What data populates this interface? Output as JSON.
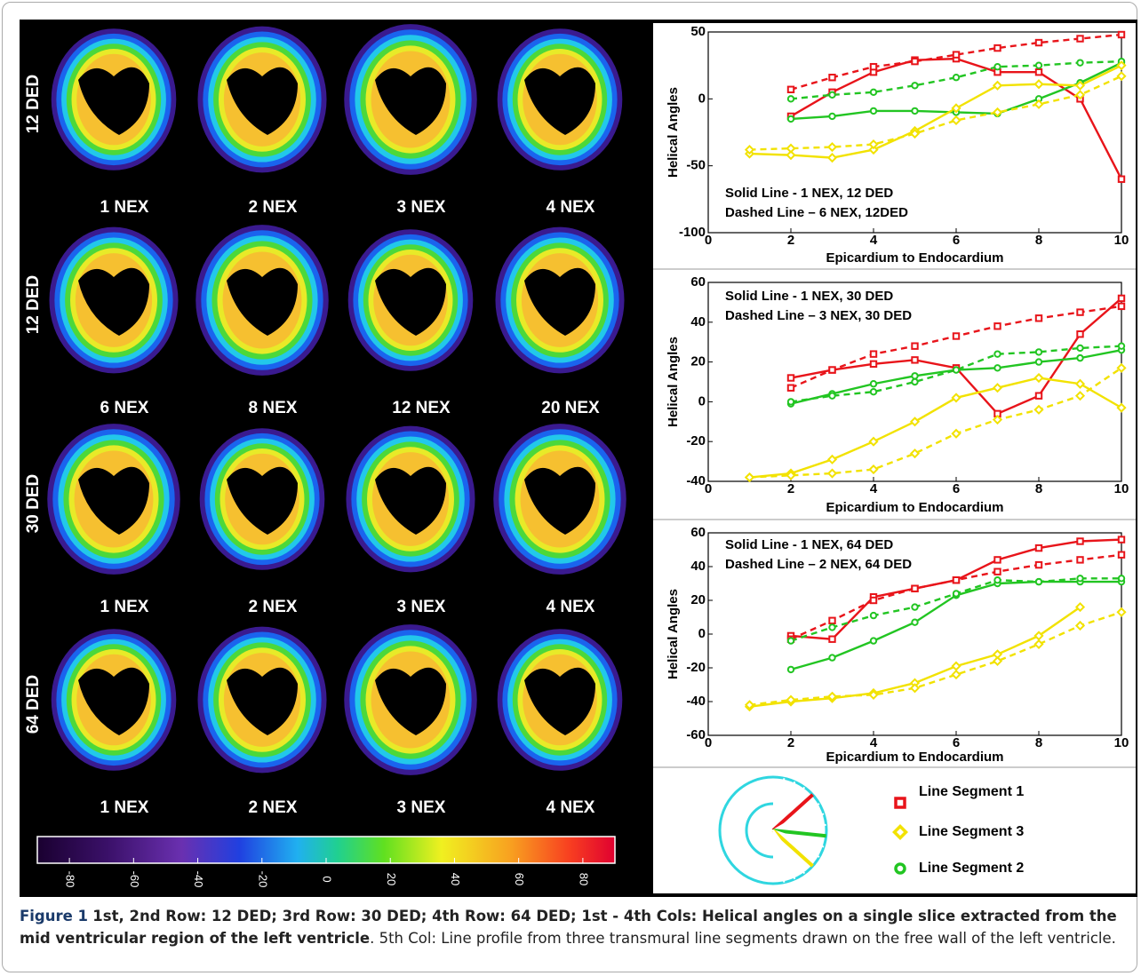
{
  "panels": {
    "rows": [
      {
        "label": "12 DED",
        "images": [
          "1 NEX",
          "2 NEX",
          "3 NEX",
          "4 NEX"
        ]
      },
      {
        "label": "12 DED",
        "images": [
          "6 NEX",
          "8 NEX",
          "12 NEX",
          "20 NEX"
        ]
      },
      {
        "label": "30 DED",
        "images": [
          "1 NEX",
          "2 NEX",
          "3 NEX",
          "4 NEX"
        ]
      },
      {
        "label": "64 DED",
        "images": [
          "1 NEX",
          "2 NEX",
          "3 NEX",
          "4 NEX"
        ]
      }
    ]
  },
  "colorbar": {
    "lim": [
      -90,
      90
    ],
    "ticks": [
      -80,
      -60,
      -40,
      -20,
      0,
      20,
      40,
      60,
      80
    ]
  },
  "chart_data": [
    {
      "type": "line",
      "y_label": "Helical Angles",
      "x_label": "Epicardium to Endocardium",
      "annotations": [
        "Solid Line - 1 NEX, 12 DED",
        "Dashed Line – 6 NEX, 12DED"
      ],
      "x": [
        1,
        2,
        3,
        4,
        5,
        6,
        7,
        8,
        9,
        10
      ],
      "xlim": [
        0,
        10
      ],
      "xticks": [
        0,
        2,
        4,
        6,
        8,
        10
      ],
      "ylim": [
        -100,
        50
      ],
      "yticks": [
        -100,
        -50,
        0,
        50
      ],
      "series": [
        {
          "color": "#e8141a",
          "style": "solid",
          "marker": "square",
          "values": [
            null,
            -13,
            5,
            20,
            29,
            30,
            20,
            20,
            0,
            -60
          ]
        },
        {
          "color": "#e8141a",
          "style": "dashed",
          "marker": "square",
          "values": [
            null,
            7,
            16,
            24,
            28,
            33,
            38,
            42,
            45,
            48
          ]
        },
        {
          "color": "#22c522",
          "style": "solid",
          "marker": "circle",
          "values": [
            null,
            -15,
            -13,
            -9,
            -9,
            -10,
            -11,
            0,
            12,
            27
          ]
        },
        {
          "color": "#22c522",
          "style": "dashed",
          "marker": "circle",
          "values": [
            null,
            0,
            3,
            5,
            10,
            16,
            24,
            25,
            27,
            28
          ]
        },
        {
          "color": "#f2e200",
          "style": "solid",
          "marker": "diamond",
          "values": [
            -41,
            -42,
            -44,
            -38,
            -24,
            -7,
            10,
            11,
            10,
            25
          ]
        },
        {
          "color": "#f2e200",
          "style": "dashed",
          "marker": "diamond",
          "values": [
            -38,
            -37,
            -36,
            -34,
            -26,
            -16,
            -10,
            -4,
            3,
            17
          ]
        }
      ]
    },
    {
      "type": "line",
      "y_label": "Helical Angles",
      "x_label": "Epicardium to Endocardium",
      "annotations": [
        "Solid Line - 1 NEX, 30 DED",
        "Dashed Line – 3 NEX, 30 DED"
      ],
      "x": [
        1,
        2,
        3,
        4,
        5,
        6,
        7,
        8,
        9,
        10
      ],
      "xlim": [
        0,
        10
      ],
      "xticks": [
        0,
        2,
        4,
        6,
        8,
        10
      ],
      "ylim": [
        -40,
        60
      ],
      "yticks": [
        -40,
        -20,
        0,
        20,
        40,
        60
      ],
      "series": [
        {
          "color": "#e8141a",
          "style": "solid",
          "marker": "square",
          "values": [
            null,
            12,
            16,
            19,
            21,
            17,
            -6,
            3,
            34,
            52
          ]
        },
        {
          "color": "#e8141a",
          "style": "dashed",
          "marker": "square",
          "values": [
            null,
            7,
            16,
            24,
            28,
            33,
            38,
            42,
            45,
            48
          ]
        },
        {
          "color": "#22c522",
          "style": "solid",
          "marker": "circle",
          "values": [
            null,
            -1,
            4,
            9,
            13,
            16,
            17,
            20,
            22,
            26
          ]
        },
        {
          "color": "#22c522",
          "style": "dashed",
          "marker": "circle",
          "values": [
            null,
            0,
            3,
            5,
            10,
            16,
            24,
            25,
            27,
            28
          ]
        },
        {
          "color": "#f2e200",
          "style": "solid",
          "marker": "diamond",
          "values": [
            -38,
            -36,
            -29,
            -20,
            -10,
            2,
            7,
            12,
            9,
            -3
          ]
        },
        {
          "color": "#f2e200",
          "style": "dashed",
          "marker": "diamond",
          "values": [
            -38,
            -37,
            -36,
            -34,
            -26,
            -16,
            -9,
            -4,
            3,
            17
          ]
        }
      ]
    },
    {
      "type": "line",
      "y_label": "Helical Angles",
      "x_label": "Epicardium to Endocardium",
      "annotations": [
        "Solid Line - 1 NEX, 64 DED",
        "Dashed Line – 2 NEX, 64 DED"
      ],
      "x": [
        1,
        2,
        3,
        4,
        5,
        6,
        7,
        8,
        9,
        10
      ],
      "xlim": [
        0,
        10
      ],
      "xticks": [
        0,
        2,
        4,
        6,
        8,
        10
      ],
      "ylim": [
        -60,
        60
      ],
      "yticks": [
        -60,
        -40,
        -20,
        0,
        20,
        40,
        60
      ],
      "series": [
        {
          "color": "#e8141a",
          "style": "solid",
          "marker": "square",
          "values": [
            null,
            -1,
            -3,
            22,
            27,
            32,
            44,
            51,
            55,
            56
          ]
        },
        {
          "color": "#e8141a",
          "style": "dashed",
          "marker": "square",
          "values": [
            null,
            -3,
            8,
            20,
            27,
            32,
            37,
            41,
            44,
            47
          ]
        },
        {
          "color": "#22c522",
          "style": "solid",
          "marker": "circle",
          "values": [
            null,
            -21,
            -14,
            -4,
            7,
            23,
            30,
            31,
            31,
            31
          ]
        },
        {
          "color": "#22c522",
          "style": "dashed",
          "marker": "circle",
          "values": [
            null,
            -4,
            4,
            11,
            16,
            24,
            32,
            31,
            33,
            33
          ]
        },
        {
          "color": "#f2e200",
          "style": "solid",
          "marker": "diamond",
          "values": [
            -43,
            -40,
            -38,
            -35,
            -29,
            -19,
            -12,
            -1,
            16,
            null
          ]
        },
        {
          "color": "#f2e200",
          "style": "dashed",
          "marker": "diamond",
          "values": [
            -42,
            -39,
            -37,
            -36,
            -32,
            -24,
            -16,
            -6,
            5,
            13
          ]
        }
      ]
    }
  ],
  "legend": [
    {
      "label": "Line Segment 1",
      "color": "#e8141a",
      "marker": "square"
    },
    {
      "label": "Line Segment 3",
      "color": "#f2e200",
      "marker": "diamond"
    },
    {
      "label": "Line Segment 2",
      "color": "#22c522",
      "marker": "circle"
    }
  ],
  "caption": {
    "label": "Figure 1",
    "bold": "1st, 2nd Row: 12 DED; 3rd Row: 30 DED; 4th Row: 64 DED; 1st - 4th Cols: Helical angles on a single slice extracted from the mid ventricular region of the left ventricle",
    "text": ". 5th Col: Line profile from three transmural line segments drawn on the free wall of the left ventricle."
  }
}
